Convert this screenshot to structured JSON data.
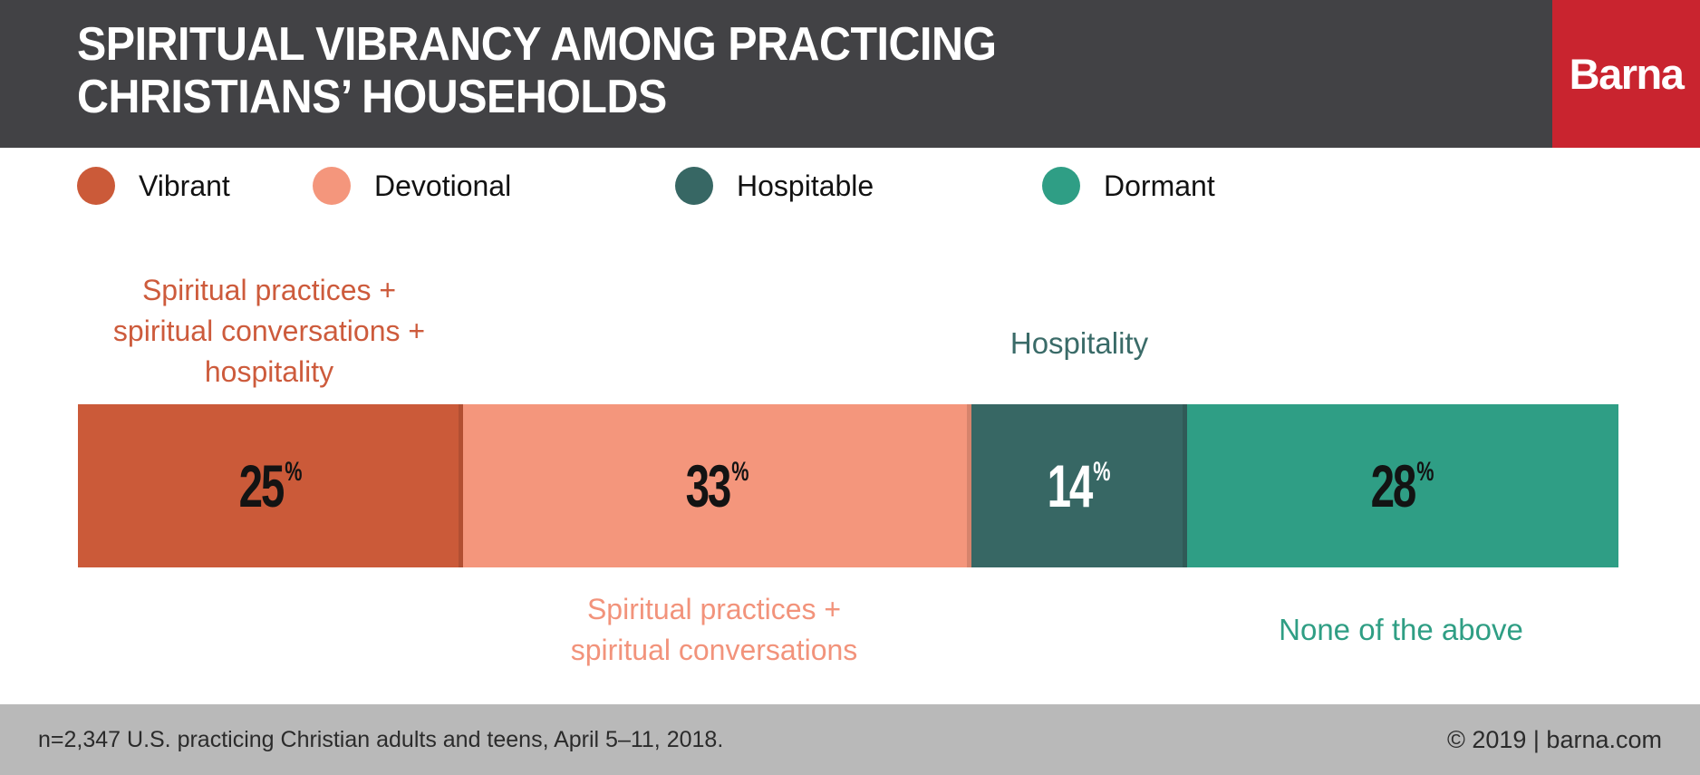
{
  "header": {
    "title_line1": "SPIRITUAL VIBRANCY AMONG PRACTICING",
    "title_line2": "CHRISTIANS’ HOUSEHOLDS",
    "bg_color": "#424245",
    "logo_text": "Barna",
    "logo_bg_color": "#c9242f"
  },
  "legend": {
    "items": [
      {
        "label": "Vibrant",
        "color": "#cb5a39"
      },
      {
        "label": "Devotional",
        "color": "#f4967c"
      },
      {
        "label": "Hospitable",
        "color": "#376764"
      },
      {
        "label": "Dormant",
        "color": "#2f9e85"
      }
    ]
  },
  "chart_data": {
    "type": "bar",
    "subtype": "horizontal-stacked",
    "title": "Spiritual vibrancy among practicing Christians’ households",
    "unit": "%",
    "total": 100,
    "percent_symbol": "%",
    "categories": [
      "Vibrant",
      "Devotional",
      "Hospitable",
      "Dormant"
    ],
    "values": [
      25,
      33,
      14,
      28
    ],
    "legend_position": "top",
    "segments": [
      {
        "name": "Vibrant",
        "value": 25,
        "color": "#cb5a39",
        "value_color": "#131313",
        "annotation_position": "above",
        "annotation": "Spiritual practices + spiritual conversations + hospitality",
        "annotation_lines": [
          "Spiritual practices +",
          "spiritual conversations +",
          "hospitality"
        ],
        "annotation_color": "#cd5b3c"
      },
      {
        "name": "Devotional",
        "value": 33,
        "color": "#f4967c",
        "value_color": "#131313",
        "annotation_position": "below",
        "annotation": "Spiritual practices + spiritual conversations",
        "annotation_lines": [
          "Spiritual practices +",
          "spiritual conversations"
        ],
        "annotation_color": "#f2937b"
      },
      {
        "name": "Hospitable",
        "value": 14,
        "color": "#376764",
        "value_color": "#ffffff",
        "annotation_position": "above",
        "annotation": "Hospitality",
        "annotation_lines": [
          "Hospitality"
        ],
        "annotation_color": "#3a6b68"
      },
      {
        "name": "Dormant",
        "value": 28,
        "color": "#2f9e85",
        "value_color": "#131313",
        "annotation_position": "below",
        "annotation": "None of the above",
        "annotation_lines": [
          "None of the above"
        ],
        "annotation_color": "#2f9e84"
      }
    ]
  },
  "footer": {
    "bg_color": "#b9b9b9",
    "source": "n=2,347 U.S. practicing Christian adults and teens, April 5–11, 2018.",
    "copyright": "© 2019 | barna.com"
  }
}
